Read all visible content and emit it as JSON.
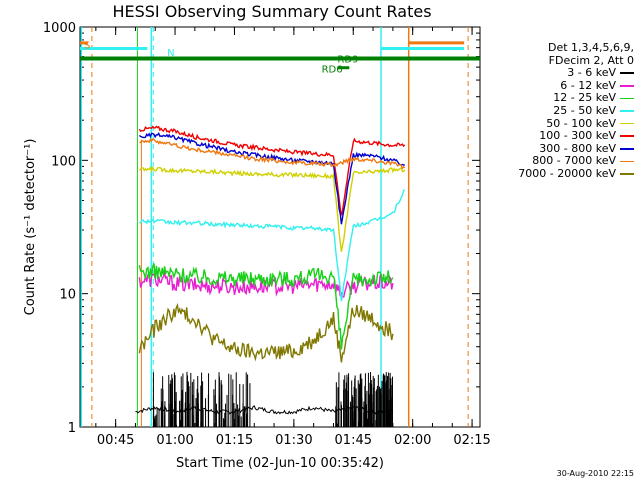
{
  "title": "HESSI Observing Summary Count Rates",
  "footer": "30-Aug-2010 22:15",
  "legend": {
    "header_line1": "Det 1,3,4,5,6,9,",
    "header_line2": "FDecim 2, Att 0"
  },
  "colors": {
    "black": "#000000",
    "magenta": "#e81ed0",
    "green": "#18d018",
    "cyan": "#30f0f0",
    "yellow": "#d0d000",
    "red": "#f00000",
    "blue": "#0000d0",
    "orange": "#f07810",
    "olive": "#807800",
    "darkgreen": "#008000"
  },
  "chart_data": {
    "type": "line",
    "title": "HESSI Observing Summary Count Rates",
    "xlabel": "Start Time (02-Jun-10 00:35:42)",
    "ylabel": "Count Rate (s⁻¹ detector⁻¹)",
    "xscale": "time",
    "xlim": [
      "00:36:00",
      "02:17:00"
    ],
    "yscale": "log",
    "ylim": [
      1,
      1000
    ],
    "x_ticks": [
      "00:45",
      "01:00",
      "01:15",
      "01:30",
      "01:45",
      "02:00",
      "02:15"
    ],
    "y_ticks": [
      "1",
      "10",
      "100",
      "1000"
    ],
    "series": [
      {
        "name": "3 - 6 keV",
        "color": "#000000",
        "x": [
          "00:50",
          "00:55",
          "01:00",
          "01:05",
          "01:10",
          "01:15",
          "01:20",
          "01:25",
          "01:30",
          "01:35",
          "01:40",
          "01:45",
          "01:50",
          "01:55"
        ],
        "y": [
          1.3,
          1.4,
          1.3,
          1.4,
          1.3,
          1.3,
          1.4,
          1.3,
          1.3,
          1.4,
          1.3,
          1.4,
          1.3,
          1.3
        ]
      },
      {
        "name": "6 - 12 keV",
        "color": "#e81ed0",
        "x": [
          "00:51",
          "00:55",
          "01:00",
          "01:05",
          "01:10",
          "01:15",
          "01:20",
          "01:25",
          "01:30",
          "01:35",
          "01:40",
          "01:42",
          "01:45",
          "01:50",
          "01:55"
        ],
        "y": [
          12.5,
          12.8,
          12.0,
          11.5,
          11.5,
          11.2,
          11.3,
          11.4,
          11.4,
          11.8,
          12.0,
          10,
          11.5,
          12,
          12
        ]
      },
      {
        "name": "12 - 25 keV",
        "color": "#18d018",
        "x": [
          "00:51",
          "00:55",
          "01:00",
          "01:05",
          "01:10",
          "01:15",
          "01:20",
          "01:25",
          "01:30",
          "01:35",
          "01:40",
          "01:42",
          "01:45",
          "01:50",
          "01:55"
        ],
        "y": [
          14.5,
          14.7,
          14.0,
          13.5,
          13.2,
          13.0,
          13.0,
          13.0,
          13.0,
          13.5,
          13.8,
          4,
          12.5,
          13,
          13.2
        ]
      },
      {
        "name": "25 - 50 keV",
        "color": "#30f0f0",
        "x": [
          "00:51",
          "00:55",
          "01:00",
          "01:05",
          "01:10",
          "01:15",
          "01:20",
          "01:25",
          "01:30",
          "01:35",
          "01:40",
          "01:42",
          "01:45",
          "01:50",
          "01:55",
          "01:58"
        ],
        "y": [
          35,
          35,
          34,
          34,
          33,
          33,
          32,
          32,
          31,
          31,
          30,
          9,
          32,
          35,
          40,
          60
        ]
      },
      {
        "name": "50 - 100 keV",
        "color": "#d0d000",
        "x": [
          "00:51",
          "00:55",
          "01:00",
          "01:05",
          "01:10",
          "01:15",
          "01:20",
          "01:25",
          "01:30",
          "01:35",
          "01:40",
          "01:42",
          "01:45",
          "01:50",
          "01:55",
          "01:58"
        ],
        "y": [
          85,
          86,
          84,
          83,
          82,
          80,
          79,
          78,
          78,
          77,
          76,
          20,
          80,
          82,
          85,
          85
        ]
      },
      {
        "name": "100 - 300 keV",
        "color": "#f00000",
        "x": [
          "00:51",
          "00:55",
          "01:00",
          "01:05",
          "01:10",
          "01:15",
          "01:20",
          "01:25",
          "01:30",
          "01:35",
          "01:40",
          "01:42",
          "01:45",
          "01:50",
          "01:55",
          "01:58"
        ],
        "y": [
          170,
          175,
          165,
          150,
          140,
          130,
          125,
          120,
          115,
          112,
          110,
          38,
          140,
          135,
          130,
          130
        ]
      },
      {
        "name": "300 - 800 keV",
        "color": "#0000d0",
        "x": [
          "00:51",
          "00:55",
          "01:00",
          "01:05",
          "01:10",
          "01:15",
          "01:20",
          "01:25",
          "01:30",
          "01:35",
          "01:40",
          "01:42",
          "01:45",
          "01:50",
          "01:55",
          "01:58"
        ],
        "y": [
          150,
          155,
          148,
          135,
          125,
          115,
          110,
          105,
          100,
          98,
          95,
          33,
          110,
          108,
          100,
          92
        ]
      },
      {
        "name": "800 - 7000 keV",
        "color": "#f07810",
        "x": [
          "00:51",
          "00:55",
          "01:00",
          "01:05",
          "01:10",
          "01:15",
          "01:20",
          "01:25",
          "01:30",
          "01:35",
          "01:40",
          "01:45",
          "01:50",
          "01:55",
          "01:58"
        ],
        "y": [
          140,
          140,
          130,
          120,
          115,
          108,
          103,
          100,
          96,
          95,
          92,
          103,
          100,
          95,
          88
        ]
      },
      {
        "name": "7000 - 20000 keV",
        "color": "#807800",
        "x": [
          "00:51",
          "00:55",
          "01:00",
          "01:05",
          "01:10",
          "01:15",
          "01:20",
          "01:25",
          "01:30",
          "01:35",
          "01:40",
          "01:42",
          "01:45",
          "01:50",
          "01:55"
        ],
        "y": [
          3.8,
          5.5,
          7.5,
          6.5,
          4.5,
          3.8,
          3.6,
          3.6,
          3.7,
          4.5,
          6.5,
          3.3,
          7.5,
          6.5,
          5.0
        ]
      }
    ],
    "annotations": [
      {
        "text": "S",
        "x": "00:37",
        "y": 740,
        "color": "#f07810"
      },
      {
        "text": "N",
        "x": "00:58",
        "y": 650,
        "color": "#30f0f0"
      },
      {
        "text": "RD9",
        "x": "01:41",
        "y": 580,
        "color": "#008000"
      },
      {
        "text": "RD6",
        "x": "01:37",
        "y": 490,
        "color": "#008000"
      }
    ],
    "legend_position": "right",
    "grid": false
  }
}
